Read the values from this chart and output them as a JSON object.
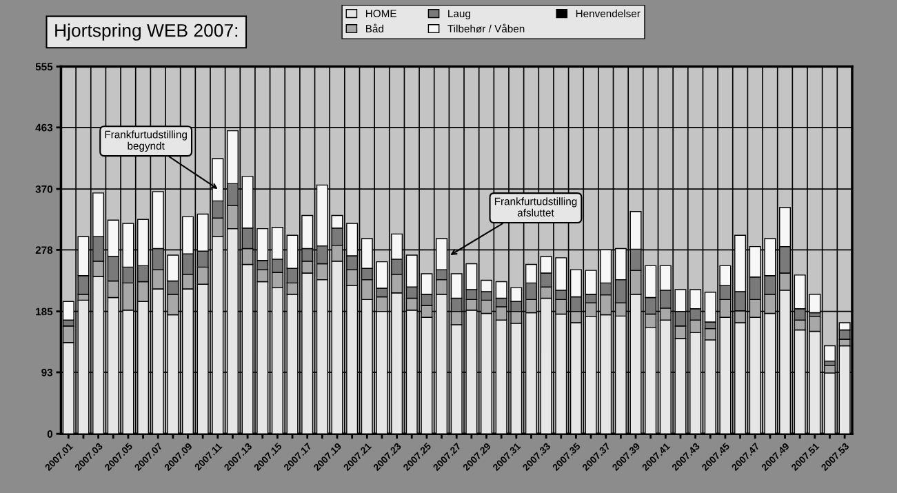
{
  "chart_data": {
    "type": "bar",
    "title": "Hjortspring WEB 2007:",
    "stacked": true,
    "grid": true,
    "legend": "top",
    "categories": [
      "2007.01",
      null,
      "2007.03",
      null,
      "2007.05",
      null,
      "2007.07",
      null,
      "2007.09",
      null,
      "2007.11",
      null,
      "2007.13",
      null,
      "2007.15",
      null,
      "2007.17",
      null,
      "2007.19",
      null,
      "2007.21",
      null,
      "2007.23",
      null,
      "2007.25",
      null,
      "2007.27",
      null,
      "2007.29",
      null,
      "2007.31",
      null,
      "2007.33",
      null,
      "2007.35",
      null,
      "2007.37",
      null,
      "2007.39",
      null,
      "2007.41",
      null,
      "2007.43",
      null,
      "2007.45",
      null,
      "2007.47",
      null,
      "2007.49",
      null,
      "2007.51",
      null,
      "2007.53"
    ],
    "ylim": [
      0,
      555
    ],
    "yticks": [
      0,
      93,
      185,
      278,
      370,
      463,
      555
    ],
    "series": [
      {
        "name": "HOME",
        "color": "#e6e6e6",
        "values": [
          138,
          202,
          238,
          206,
          187,
          200,
          219,
          180,
          219,
          226,
          298,
          310,
          256,
          230,
          221,
          211,
          243,
          233,
          261,
          224,
          203,
          185,
          213,
          187,
          176,
          211,
          165,
          187,
          182,
          172,
          167,
          183,
          205,
          181,
          168,
          177,
          180,
          178,
          211,
          161,
          172,
          144,
          153,
          142,
          176,
          168,
          176,
          182,
          217,
          157,
          155,
          92,
          133
        ]
      },
      {
        "name": "Båd",
        "color": "#a8a8a8",
        "values": [
          25,
          9,
          23,
          25,
          41,
          30,
          29,
          31,
          22,
          26,
          28,
          35,
          24,
          18,
          23,
          17,
          18,
          24,
          24,
          24,
          30,
          22,
          28,
          18,
          18,
          22,
          20,
          16,
          20,
          20,
          18,
          20,
          17,
          22,
          17,
          21,
          30,
          20,
          36,
          20,
          18,
          19,
          19,
          17,
          27,
          18,
          27,
          29,
          26,
          15,
          22,
          11,
          10
        ]
      },
      {
        "name": "Laug",
        "color": "#7a7a7a",
        "values": [
          9,
          28,
          37,
          37,
          24,
          24,
          32,
          20,
          31,
          24,
          26,
          33,
          31,
          14,
          20,
          22,
          19,
          27,
          26,
          21,
          17,
          13,
          23,
          17,
          17,
          15,
          20,
          15,
          13,
          13,
          15,
          25,
          21,
          14,
          22,
          13,
          18,
          35,
          32,
          25,
          27,
          22,
          17,
          10,
          21,
          29,
          34,
          28,
          40,
          17,
          6,
          7,
          14
        ]
      },
      {
        "name": "Tilbehør / Våben",
        "color": "#f7f7f7",
        "values": [
          28,
          59,
          66,
          55,
          66,
          70,
          86,
          39,
          56,
          56,
          64,
          80,
          78,
          48,
          48,
          50,
          50,
          92,
          19,
          49,
          45,
          40,
          38,
          48,
          31,
          47,
          37,
          39,
          17,
          25,
          21,
          28,
          25,
          49,
          41,
          36,
          50,
          47,
          57,
          48,
          37,
          33,
          29,
          45,
          30,
          85,
          46,
          56,
          59,
          51,
          28,
          23,
          11
        ]
      },
      {
        "name": "Henvendelser",
        "color": "#000000",
        "values": [
          null,
          null,
          null,
          null,
          null,
          null,
          null,
          null,
          null,
          null,
          null,
          null,
          null,
          null,
          null,
          null,
          null,
          null,
          null,
          null,
          null,
          null,
          null,
          null,
          null,
          null,
          null,
          null,
          null,
          null,
          null,
          null,
          null,
          null,
          null,
          null,
          null,
          null,
          null,
          null,
          null,
          null,
          null,
          null,
          null,
          null,
          null,
          null,
          null,
          null,
          null,
          null,
          null
        ]
      }
    ],
    "annotations": [
      {
        "text": "Frankfurtudstilling\nbegyndt",
        "x": "2007.11",
        "y": 370
      },
      "Frankfurtudstilling\nafsluttet"
    ]
  }
}
